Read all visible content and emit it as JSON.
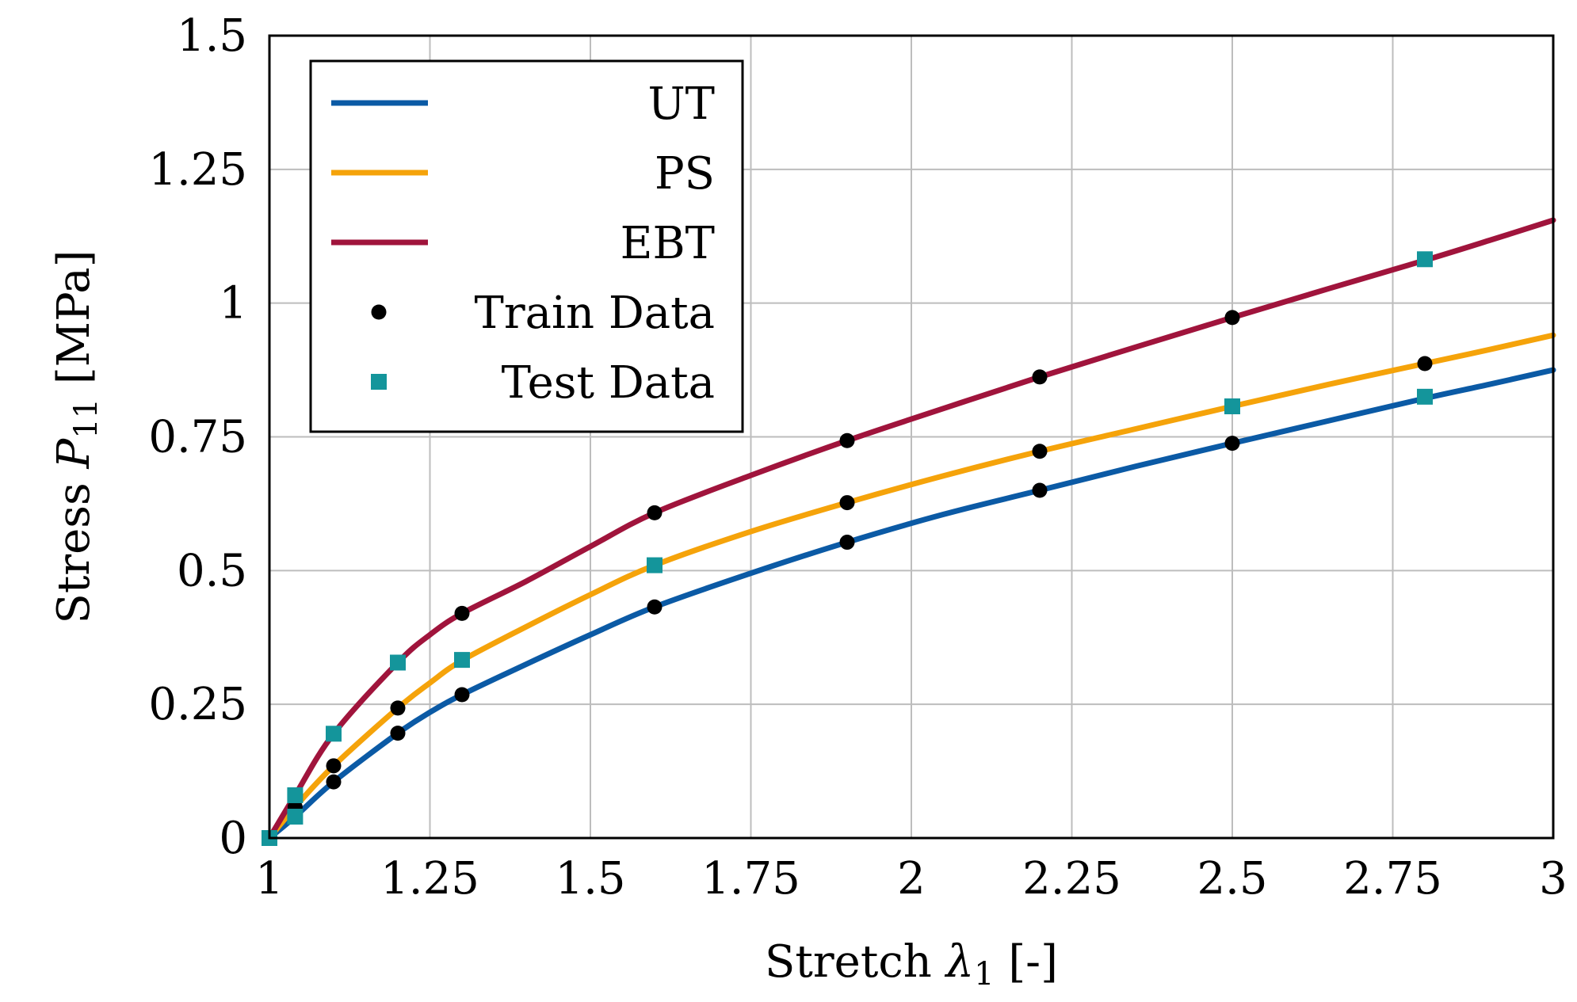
{
  "chart_data": {
    "type": "line",
    "xlabel": {
      "text": "Stretch ",
      "symbol": "λ",
      "sub": "1",
      "suffix": " [-]"
    },
    "ylabel": {
      "text": "Stress ",
      "symbol": "P",
      "sub": "11",
      "suffix": " [MPa]"
    },
    "xlim": [
      1,
      3
    ],
    "ylim": [
      0,
      1.5
    ],
    "xticks": [
      1,
      1.25,
      1.5,
      1.75,
      2,
      2.25,
      2.5,
      2.75,
      3
    ],
    "xtick_labels": [
      "1",
      "1.25",
      "1.5",
      "1.75",
      "2",
      "2.25",
      "2.5",
      "2.75",
      "3"
    ],
    "yticks": [
      0,
      0.25,
      0.5,
      0.75,
      1,
      1.25,
      1.5
    ],
    "ytick_labels": [
      "0",
      "0.25",
      "0.5",
      "0.75",
      "1",
      "1.25",
      "1.5"
    ],
    "grid": true,
    "legend_position": "top-left",
    "series": [
      {
        "name": "UT",
        "color": "#0b5aa5",
        "curve": [
          [
            1,
            0
          ],
          [
            1.04,
            0.04
          ],
          [
            1.1,
            0.105
          ],
          [
            1.2,
            0.196
          ],
          [
            1.25,
            0.235
          ],
          [
            1.3,
            0.268
          ],
          [
            1.4,
            0.325
          ],
          [
            1.5,
            0.38
          ],
          [
            1.6,
            0.432
          ],
          [
            1.75,
            0.495
          ],
          [
            1.9,
            0.553
          ],
          [
            2.05,
            0.605
          ],
          [
            2.2,
            0.65
          ],
          [
            2.35,
            0.695
          ],
          [
            2.5,
            0.738
          ],
          [
            2.65,
            0.78
          ],
          [
            2.8,
            0.822
          ],
          [
            2.9,
            0.848
          ],
          [
            3,
            0.875
          ]
        ],
        "train": [
          [
            1.04,
            0.04
          ],
          [
            1.1,
            0.105
          ],
          [
            1.2,
            0.196
          ],
          [
            1.3,
            0.268
          ],
          [
            1.6,
            0.432
          ],
          [
            1.9,
            0.553
          ],
          [
            2.2,
            0.65
          ],
          [
            2.5,
            0.738
          ]
        ],
        "test": [
          [
            1,
            0
          ],
          [
            1.04,
            0.04
          ],
          [
            2.8,
            0.825
          ]
        ]
      },
      {
        "name": "PS",
        "color": "#f5a30a",
        "curve": [
          [
            1,
            0
          ],
          [
            1.04,
            0.058
          ],
          [
            1.1,
            0.135
          ],
          [
            1.2,
            0.243
          ],
          [
            1.25,
            0.29
          ],
          [
            1.3,
            0.332
          ],
          [
            1.4,
            0.395
          ],
          [
            1.5,
            0.455
          ],
          [
            1.6,
            0.51
          ],
          [
            1.75,
            0.573
          ],
          [
            1.9,
            0.627
          ],
          [
            2.05,
            0.677
          ],
          [
            2.2,
            0.723
          ],
          [
            2.35,
            0.765
          ],
          [
            2.5,
            0.807
          ],
          [
            2.65,
            0.848
          ],
          [
            2.8,
            0.887
          ],
          [
            2.9,
            0.913
          ],
          [
            3,
            0.94
          ]
        ],
        "train": [
          [
            1.04,
            0.058
          ],
          [
            1.1,
            0.135
          ],
          [
            1.2,
            0.243
          ],
          [
            1.9,
            0.627
          ],
          [
            2.2,
            0.723
          ],
          [
            2.8,
            0.887
          ]
        ],
        "test": [
          [
            1.3,
            0.333
          ],
          [
            1.6,
            0.51
          ],
          [
            2.5,
            0.807
          ]
        ]
      },
      {
        "name": "EBT",
        "color": "#a0143c",
        "curve": [
          [
            1,
            0
          ],
          [
            1.04,
            0.08
          ],
          [
            1.1,
            0.195
          ],
          [
            1.2,
            0.328
          ],
          [
            1.25,
            0.38
          ],
          [
            1.3,
            0.42
          ],
          [
            1.4,
            0.48
          ],
          [
            1.5,
            0.545
          ],
          [
            1.6,
            0.608
          ],
          [
            1.75,
            0.678
          ],
          [
            1.9,
            0.743
          ],
          [
            2.05,
            0.803
          ],
          [
            2.2,
            0.862
          ],
          [
            2.35,
            0.918
          ],
          [
            2.5,
            0.973
          ],
          [
            2.65,
            1.027
          ],
          [
            2.8,
            1.08
          ],
          [
            2.9,
            1.117
          ],
          [
            3,
            1.155
          ]
        ],
        "train": [
          [
            1.3,
            0.42
          ],
          [
            1.6,
            0.608
          ],
          [
            1.9,
            0.743
          ],
          [
            2.2,
            0.862
          ],
          [
            2.5,
            0.973
          ]
        ],
        "test": [
          [
            1.04,
            0.08
          ],
          [
            1.1,
            0.195
          ],
          [
            1.2,
            0.328
          ],
          [
            2.8,
            1.082
          ]
        ]
      }
    ],
    "markers": [
      {
        "name": "Train Data",
        "shape": "circle",
        "color": "#000000"
      },
      {
        "name": "Test Data",
        "shape": "square",
        "color": "#14959b"
      }
    ]
  }
}
